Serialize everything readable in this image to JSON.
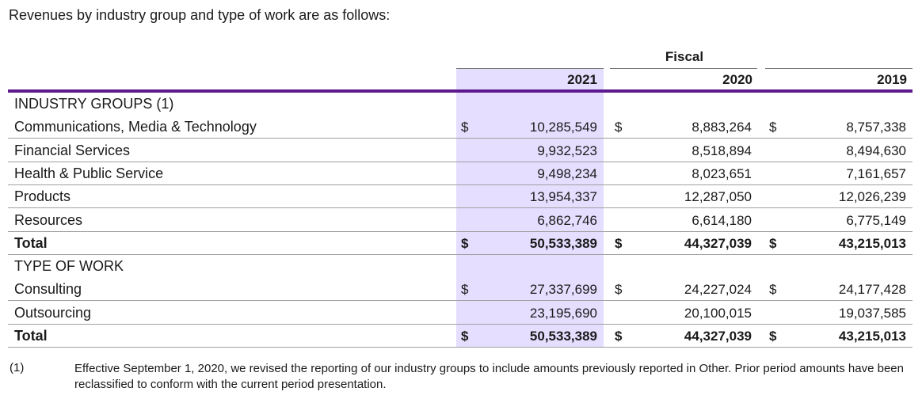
{
  "intro": "Revenues by industry group and type of work are as follows:",
  "header": {
    "group": "Fiscal",
    "years": [
      "2021",
      "2020",
      "2019"
    ]
  },
  "currency_symbol": "$",
  "sections": [
    {
      "title": "INDUSTRY GROUPS (1)",
      "rows": [
        {
          "label": "Communications, Media & Technology",
          "values": [
            "10,285,549",
            "8,883,264",
            "8,757,338"
          ],
          "dollar": true
        },
        {
          "label": "Financial Services",
          "values": [
            "9,932,523",
            "8,518,894",
            "8,494,630"
          ],
          "dollar": false
        },
        {
          "label": "Health & Public Service",
          "values": [
            "9,498,234",
            "8,023,651",
            "7,161,657"
          ],
          "dollar": false
        },
        {
          "label": "Products",
          "values": [
            "13,954,337",
            "12,287,050",
            "12,026,239"
          ],
          "dollar": false
        },
        {
          "label": "Resources",
          "values": [
            "6,862,746",
            "6,614,180",
            "6,775,149"
          ],
          "dollar": false
        }
      ],
      "total": {
        "label": "Total",
        "values": [
          "50,533,389",
          "44,327,039",
          "43,215,013"
        ]
      }
    },
    {
      "title": "TYPE OF WORK",
      "rows": [
        {
          "label": "Consulting",
          "values": [
            "27,337,699",
            "24,227,024",
            "24,177,428"
          ],
          "dollar": true
        },
        {
          "label": "Outsourcing",
          "values": [
            "23,195,690",
            "20,100,015",
            "19,037,585"
          ],
          "dollar": false
        }
      ],
      "total": {
        "label": "Total",
        "values": [
          "50,533,389",
          "44,327,039",
          "43,215,013"
        ]
      }
    }
  ],
  "footnote": {
    "marker": "(1)",
    "text": "Effective September 1, 2020, we revised the reporting of our industry groups to include amounts previously reported in Other. Prior period amounts have been reclassified to conform with the current period presentation."
  },
  "colors": {
    "highlight": "#e5deff",
    "rule": "#5c1a8e"
  }
}
